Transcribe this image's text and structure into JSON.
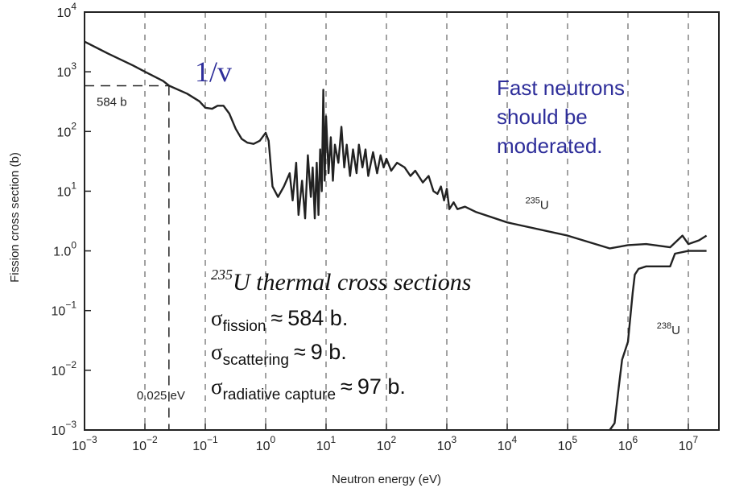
{
  "chart_data": {
    "type": "line",
    "xlabel": "Neutron energy (eV)",
    "ylabel": "Fission cross section (b)",
    "x_scale": "log",
    "y_scale": "log",
    "xlim": [
      0.001,
      20000000
    ],
    "ylim": [
      0.001,
      10000
    ],
    "x_ticks": [
      {
        "value": 0.001,
        "base": "10",
        "exp": "−3"
      },
      {
        "value": 0.01,
        "base": "10",
        "exp": "−2"
      },
      {
        "value": 0.1,
        "base": "10",
        "exp": "−1"
      },
      {
        "value": 1,
        "base": "10",
        "exp": "0"
      },
      {
        "value": 10,
        "base": "10",
        "exp": "1"
      },
      {
        "value": 100,
        "base": "10",
        "exp": "2"
      },
      {
        "value": 1000,
        "base": "10",
        "exp": "3"
      },
      {
        "value": 10000,
        "base": "10",
        "exp": "4"
      },
      {
        "value": 100000,
        "base": "10",
        "exp": "5"
      },
      {
        "value": 1000000,
        "base": "10",
        "exp": "6"
      },
      {
        "value": 10000000,
        "base": "10",
        "exp": "7"
      }
    ],
    "y_ticks": [
      {
        "value": 0.001,
        "base": "10",
        "exp": "−3"
      },
      {
        "value": 0.01,
        "base": "10",
        "exp": "−2"
      },
      {
        "value": 0.1,
        "base": "10",
        "exp": "−1"
      },
      {
        "value": 1,
        "base": "1.0",
        "exp": "0"
      },
      {
        "value": 10,
        "base": "10",
        "exp": "1"
      },
      {
        "value": 100,
        "base": "10",
        "exp": "2"
      },
      {
        "value": 1000,
        "base": "10",
        "exp": "3"
      },
      {
        "value": 10000,
        "base": "10",
        "exp": "4"
      }
    ],
    "grid": "vertical dashed at decades",
    "series": [
      {
        "name": "235U",
        "label_at": {
          "x": 20000,
          "y": 5
        },
        "points": [
          [
            0.001,
            3200
          ],
          [
            0.0025,
            2000
          ],
          [
            0.00631,
            1280
          ],
          [
            0.01,
            1000
          ],
          [
            0.02,
            700
          ],
          [
            0.0253,
            584
          ],
          [
            0.05,
            430
          ],
          [
            0.08,
            320
          ],
          [
            0.1,
            250
          ],
          [
            0.13,
            240
          ],
          [
            0.16,
            270
          ],
          [
            0.2,
            270
          ],
          [
            0.25,
            200
          ],
          [
            0.32,
            110
          ],
          [
            0.4,
            75
          ],
          [
            0.5,
            65
          ],
          [
            0.63,
            62
          ],
          [
            0.8,
            70
          ],
          [
            1.0,
            95
          ],
          [
            1.12,
            70
          ],
          [
            1.3,
            12
          ],
          [
            1.6,
            8
          ],
          [
            2.0,
            12
          ],
          [
            2.5,
            20
          ],
          [
            2.8,
            7
          ],
          [
            3.2,
            30
          ],
          [
            3.5,
            4
          ],
          [
            4.0,
            15
          ],
          [
            4.5,
            3.5
          ],
          [
            5.0,
            40
          ],
          [
            5.6,
            8
          ],
          [
            6.0,
            25
          ],
          [
            6.5,
            3.5
          ],
          [
            7.0,
            30
          ],
          [
            7.5,
            4
          ],
          [
            8.0,
            50
          ],
          [
            8.5,
            10
          ],
          [
            9.0,
            500
          ],
          [
            9.5,
            15
          ],
          [
            10,
            180
          ],
          [
            11,
            20
          ],
          [
            12,
            80
          ],
          [
            13,
            15
          ],
          [
            14,
            60
          ],
          [
            16,
            30
          ],
          [
            18,
            120
          ],
          [
            20,
            25
          ],
          [
            22,
            60
          ],
          [
            25,
            18
          ],
          [
            28,
            50
          ],
          [
            32,
            20
          ],
          [
            35,
            60
          ],
          [
            40,
            25
          ],
          [
            45,
            50
          ],
          [
            50,
            18
          ],
          [
            60,
            45
          ],
          [
            70,
            20
          ],
          [
            80,
            40
          ],
          [
            90,
            25
          ],
          [
            100,
            35
          ],
          [
            120,
            22
          ],
          [
            150,
            30
          ],
          [
            200,
            25
          ],
          [
            250,
            18
          ],
          [
            300,
            22
          ],
          [
            400,
            14
          ],
          [
            500,
            18
          ],
          [
            600,
            10
          ],
          [
            700,
            9
          ],
          [
            800,
            12
          ],
          [
            900,
            7
          ],
          [
            1000,
            11
          ],
          [
            1100,
            5
          ],
          [
            1300,
            6.5
          ],
          [
            1500,
            5
          ],
          [
            2000,
            5.5
          ],
          [
            3000,
            4.5
          ],
          [
            10000,
            3
          ],
          [
            100000,
            1.8
          ],
          [
            500000,
            1.1
          ],
          [
            1000000,
            1.25
          ],
          [
            2000000,
            1.3
          ],
          [
            5000000,
            1.15
          ],
          [
            8000000,
            1.8
          ],
          [
            10000000,
            1.3
          ],
          [
            15000000,
            1.5
          ],
          [
            20000000,
            1.8
          ]
        ]
      },
      {
        "name": "238U",
        "label_at": {
          "x": 3000000,
          "y": 0.04
        },
        "points": [
          [
            500000,
            0.001
          ],
          [
            600000,
            0.0013
          ],
          [
            700000,
            0.005
          ],
          [
            800000,
            0.015
          ],
          [
            1000000,
            0.03
          ],
          [
            1200000,
            0.2
          ],
          [
            1300000,
            0.4
          ],
          [
            1500000,
            0.5
          ],
          [
            2000000,
            0.55
          ],
          [
            3000000,
            0.55
          ],
          [
            5000000,
            0.55
          ],
          [
            6000000,
            0.9
          ],
          [
            10000000,
            1.0
          ],
          [
            20000000,
            1.0
          ]
        ]
      }
    ],
    "marker": {
      "x": 0.025,
      "y": 584,
      "x_label": "0.025 eV",
      "y_label": "584 b"
    }
  },
  "annotations": {
    "one_over_v": "1/v",
    "fast_note": [
      "Fast neutrons",
      "should be",
      "moderated."
    ],
    "xs_title_sup": "235",
    "xs_title_rest": "U thermal cross sections",
    "xs_rows": [
      {
        "sym": "σ",
        "sub": "fission",
        "op": "≈",
        "value": "584 b."
      },
      {
        "sym": "σ",
        "sub": "scattering",
        "op": "≈",
        "value": "9 b."
      },
      {
        "sym": "σ",
        "sub": "radiative capture",
        "op": "≈",
        "value": "97 b."
      }
    ]
  },
  "colors": {
    "curve": "#222222",
    "blue_text": "#2e2e9a",
    "grid": "#444444"
  }
}
